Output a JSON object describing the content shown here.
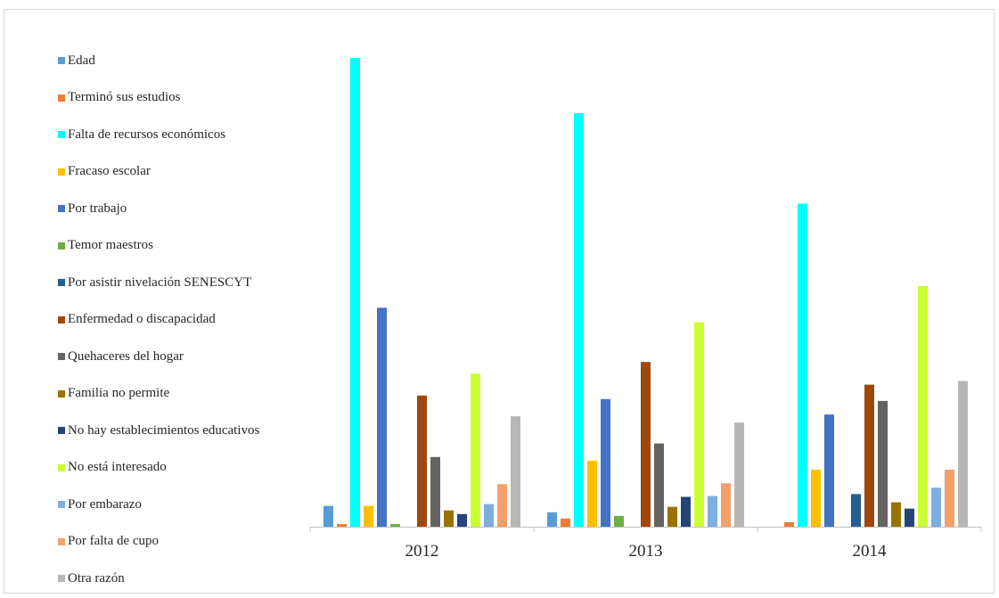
{
  "chart_data": {
    "type": "bar",
    "categories": [
      "2012",
      "2013",
      "2014"
    ],
    "series": [
      {
        "name": "Edad",
        "color": "#5b9bd5",
        "values": [
          2.3,
          1.6,
          0
        ]
      },
      {
        "name": "Terminó sus estudios",
        "color": "#ed7d31",
        "values": [
          0.3,
          0.9,
          0.5
        ]
      },
      {
        "name": "Falta de recursos económicos",
        "color": "#00ffff",
        "values": [
          51.8,
          45.7,
          35.7
        ]
      },
      {
        "name": "Fracaso escolar",
        "color": "#ffc000",
        "values": [
          2.3,
          7.3,
          6.3
        ]
      },
      {
        "name": "Por trabajo",
        "color": "#4472c4",
        "values": [
          24.2,
          14.1,
          12.4
        ]
      },
      {
        "name": "Temor maestros",
        "color": "#70ad47",
        "values": [
          0.3,
          1.2,
          0
        ]
      },
      {
        "name": "Por asistir nivelación SENESCYT",
        "color": "#255e91",
        "values": [
          0,
          0,
          3.6
        ]
      },
      {
        "name": "Enfermedad o discapacidad",
        "color": "#9e480e",
        "values": [
          14.5,
          18.2,
          15.7
        ]
      },
      {
        "name": "Quehaceres del hogar",
        "color": "#636363",
        "values": [
          7.7,
          9.2,
          13.9
        ]
      },
      {
        "name": "Familia no permite",
        "color": "#997300",
        "values": [
          1.8,
          2.2,
          2.7
        ]
      },
      {
        "name": "No hay establecimientos educativos",
        "color": "#264478",
        "values": [
          1.4,
          3.3,
          2.0
        ]
      },
      {
        "name": "No está interesado",
        "color": "#ccff33",
        "values": [
          16.9,
          22.6,
          26.6
        ]
      },
      {
        "name": "Por embarazo",
        "color": "#7cafdd",
        "values": [
          2.5,
          3.4,
          4.3
        ]
      },
      {
        "name": "Por falta de cupo",
        "color": "#f4a06b",
        "values": [
          4.7,
          4.8,
          6.3
        ]
      },
      {
        "name": "Otra razón",
        "color": "#b7b7b7",
        "values": [
          12.2,
          11.5,
          16.1
        ]
      }
    ],
    "title": "",
    "xlabel": "",
    "ylabel": "",
    "ylim": [
      0,
      52
    ],
    "grid": false,
    "legend_position": "left"
  }
}
